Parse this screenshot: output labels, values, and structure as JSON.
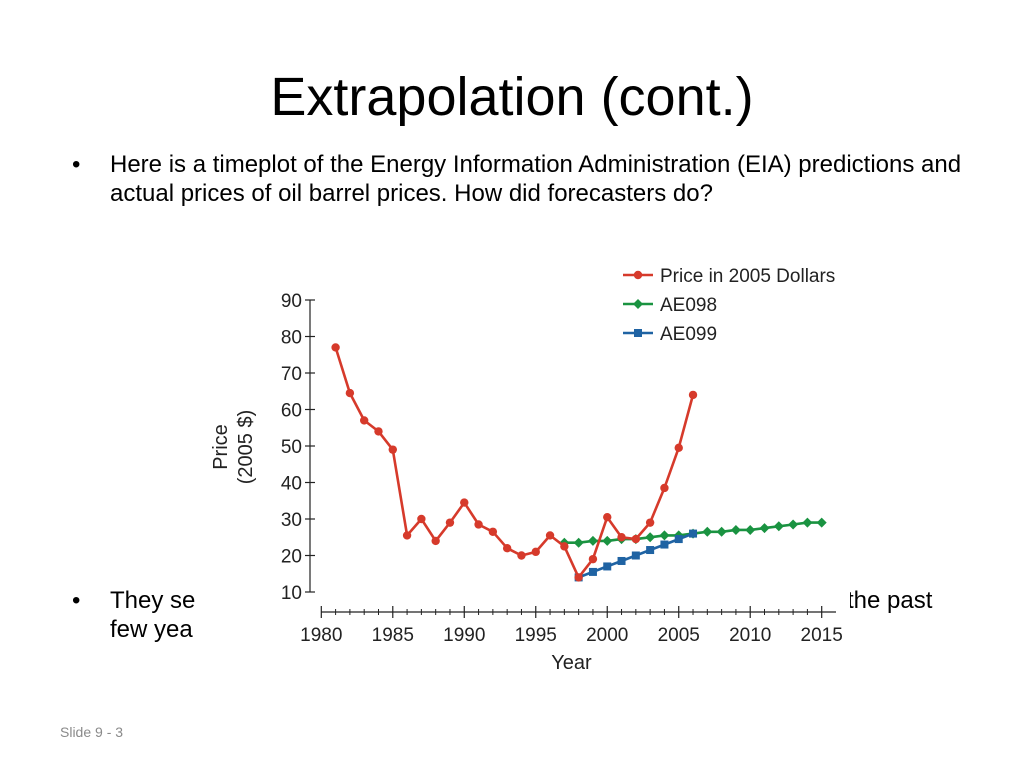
{
  "slide": {
    "title": "Extrapolation (cont.)",
    "bullet1": "Here is a timeplot of the Energy Information Administration (EIA) predictions and actual prices of oil barrel prices.  How did forecasters do?",
    "bullet2_left": "They se",
    "bullet2_right": "n the past",
    "bullet2_line2": "few yea",
    "bullet_symbol": "•",
    "slide_number": "Slide 9 - 3"
  },
  "chart_data": {
    "type": "line",
    "xlabel": "Year",
    "ylabel_line1": "Price",
    "ylabel_line2": "(2005 $)",
    "xlim": [
      1979,
      2016
    ],
    "ylim": [
      10,
      90
    ],
    "xticks": [
      1980,
      1985,
      1990,
      1995,
      2000,
      2005,
      2010,
      2015
    ],
    "yticks": [
      10,
      20,
      30,
      40,
      50,
      60,
      70,
      80,
      90
    ],
    "grid": false,
    "legend_position": "top-right",
    "series": [
      {
        "name": "Price in 2005 Dollars",
        "color": "#d63a2b",
        "marker": "circle",
        "points": [
          [
            1981,
            77
          ],
          [
            1982,
            64.5
          ],
          [
            1983,
            57
          ],
          [
            1984,
            54
          ],
          [
            1985,
            49
          ],
          [
            1986,
            25.5
          ],
          [
            1987,
            30
          ],
          [
            1988,
            24
          ],
          [
            1989,
            29
          ],
          [
            1990,
            34.5
          ],
          [
            1991,
            28.5
          ],
          [
            1992,
            26.5
          ],
          [
            1993,
            22
          ],
          [
            1994,
            20
          ],
          [
            1995,
            21
          ],
          [
            1996,
            25.5
          ],
          [
            1997,
            22.5
          ],
          [
            1998,
            14
          ],
          [
            1999,
            19
          ],
          [
            2000,
            30.5
          ],
          [
            2001,
            25
          ],
          [
            2002,
            24.5
          ],
          [
            2003,
            29
          ],
          [
            2004,
            38.5
          ],
          [
            2005,
            49.5
          ],
          [
            2006,
            64
          ]
        ]
      },
      {
        "name": "AE098",
        "color": "#1a9341",
        "marker": "diamond",
        "points": [
          [
            1997,
            23.5
          ],
          [
            1998,
            23.5
          ],
          [
            1999,
            24
          ],
          [
            2000,
            24
          ],
          [
            2001,
            24.5
          ],
          [
            2002,
            24.5
          ],
          [
            2003,
            25
          ],
          [
            2004,
            25.5
          ],
          [
            2005,
            25.5
          ],
          [
            2006,
            26
          ],
          [
            2007,
            26.5
          ],
          [
            2008,
            26.5
          ],
          [
            2009,
            27
          ],
          [
            2010,
            27
          ],
          [
            2011,
            27.5
          ],
          [
            2012,
            28
          ],
          [
            2013,
            28.5
          ],
          [
            2014,
            29
          ],
          [
            2015,
            29
          ]
        ]
      },
      {
        "name": "AE099",
        "color": "#1f63a3",
        "marker": "square",
        "points": [
          [
            1998,
            14
          ],
          [
            1999,
            15.5
          ],
          [
            2000,
            17
          ],
          [
            2001,
            18.5
          ],
          [
            2002,
            20
          ],
          [
            2003,
            21.5
          ],
          [
            2004,
            23
          ],
          [
            2005,
            24.5
          ],
          [
            2006,
            26
          ]
        ]
      }
    ]
  }
}
